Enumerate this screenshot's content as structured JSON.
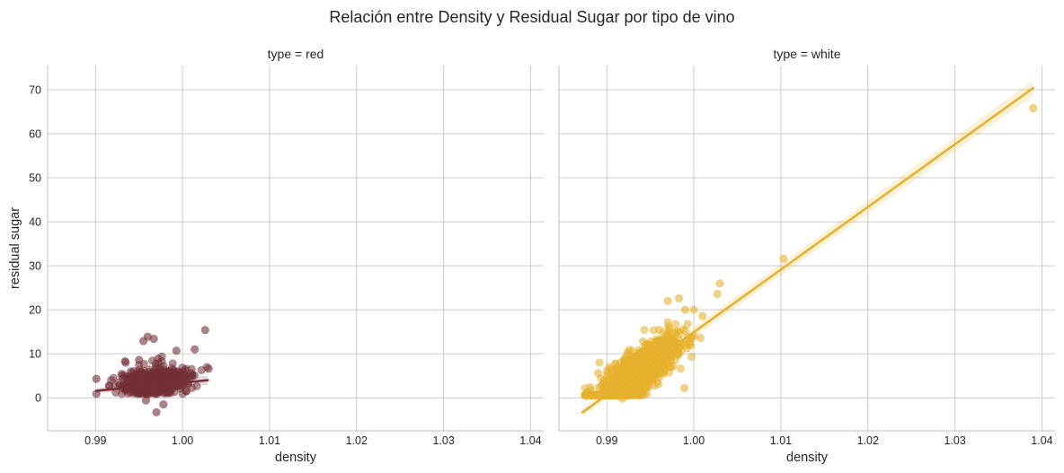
{
  "figure": {
    "suptitle": "Relación entre Density y Residual Sugar por tipo de vino"
  },
  "chart_data": [
    {
      "type": "scatter",
      "panel_title": "type = red",
      "xlabel": "density",
      "ylabel": "residual sugar",
      "xlim": [
        0.9845,
        1.0415
      ],
      "ylim": [
        -7.5,
        75.5
      ],
      "xticks": [
        0.99,
        1.0,
        1.01,
        1.02,
        1.03,
        1.04
      ],
      "xtick_labels": [
        "0.99",
        "1.00",
        "1.01",
        "1.02",
        "1.03",
        "1.04"
      ],
      "yticks": [
        0,
        10,
        20,
        30,
        40,
        50,
        60,
        70
      ],
      "ytick_labels": [
        "0",
        "10",
        "20",
        "30",
        "40",
        "50",
        "60",
        "70"
      ],
      "grid": true,
      "color": "#722f37",
      "regression_line": {
        "x": [
          0.9901,
          1.0029
        ],
        "y": [
          1.6,
          4.0
        ]
      },
      "points_notable": [
        {
          "x": 1.0026,
          "y": 15.4
        },
        {
          "x": 0.996,
          "y": 13.9
        },
        {
          "x": 0.9967,
          "y": 13.4
        },
        {
          "x": 0.9955,
          "y": 12.9
        },
        {
          "x": 1.0014,
          "y": 11.0
        },
        {
          "x": 0.9993,
          "y": 10.7
        },
        {
          "x": 0.9934,
          "y": 8.3
        },
        {
          "x": 0.995,
          "y": 8.6
        },
        {
          "x": 0.9972,
          "y": 8.9
        },
        {
          "x": 0.9901,
          "y": 4.3
        },
        {
          "x": 0.9901,
          "y": 0.9
        },
        {
          "x": 0.997,
          "y": -3.3
        },
        {
          "x": 0.9978,
          "y": -1.5
        },
        {
          "x": 0.9958,
          "y": -0.6
        },
        {
          "x": 1.003,
          "y": 6.6
        }
      ]
    },
    {
      "type": "scatter",
      "panel_title": "type = white",
      "xlabel": "density",
      "ylabel": "",
      "xlim": [
        0.9845,
        1.0415
      ],
      "ylim": [
        -7.5,
        75.5
      ],
      "xticks": [
        0.99,
        1.0,
        1.01,
        1.02,
        1.03,
        1.04
      ],
      "xtick_labels": [
        "0.99",
        "1.00",
        "1.01",
        "1.02",
        "1.03",
        "1.04"
      ],
      "yticks": [
        0,
        10,
        20,
        30,
        40,
        50,
        60,
        70
      ],
      "ytick_labels": [
        "0",
        "10",
        "20",
        "30",
        "40",
        "50",
        "60",
        "70"
      ],
      "grid": true,
      "color": "#e6b12e",
      "regression_line": {
        "x": [
          0.9872,
          1.039
        ],
        "y": [
          -3.3,
          70.4
        ]
      },
      "points_notable": [
        {
          "x": 1.039,
          "y": 65.8
        },
        {
          "x": 1.0103,
          "y": 31.6
        },
        {
          "x": 1.003,
          "y": 26.0
        },
        {
          "x": 1.0027,
          "y": 23.6
        },
        {
          "x": 0.9983,
          "y": 22.6
        },
        {
          "x": 0.997,
          "y": 22.0
        },
        {
          "x": 0.999,
          "y": 20.0
        },
        {
          "x": 1.0,
          "y": 20.0
        },
        {
          "x": 1.001,
          "y": 18.6
        },
        {
          "x": 0.989,
          "y": 5.6
        },
        {
          "x": 0.9878,
          "y": 1.2
        },
        {
          "x": 0.9918,
          "y": -0.2
        },
        {
          "x": 0.9989,
          "y": 2.2
        },
        {
          "x": 0.9955,
          "y": 2.8
        }
      ]
    }
  ]
}
